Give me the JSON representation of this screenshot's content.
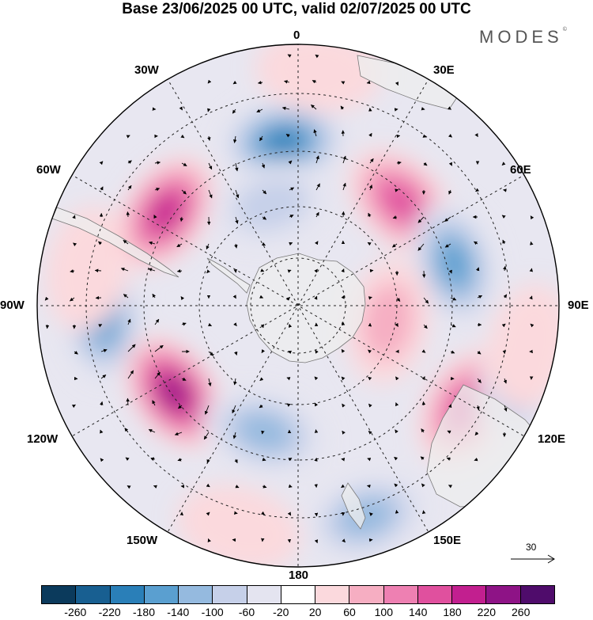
{
  "title": "Base 23/06/2025 00 UTC, valid 02/07/2025 00 UTC",
  "brand": "MODES",
  "brand_mark": "©",
  "meridian_labels": {
    "lon_0": "0",
    "lon_30e": "30E",
    "lon_60e": "60E",
    "lon_90e": "90E",
    "lon_120e": "120E",
    "lon_150e": "150E",
    "lon_180": "180",
    "lon_150w": "150W",
    "lon_120w": "120W",
    "lon_90w": "90W",
    "lon_60w": "60W",
    "lon_30w": "30W"
  },
  "reference_vector": {
    "label": "30"
  },
  "colorbar": {
    "colors": [
      "#0b3a5c",
      "#185f91",
      "#2a7fb8",
      "#5a9fd0",
      "#95badf",
      "#c6d0e9",
      "#e4e4f0",
      "#ffffff",
      "#fbd9dd",
      "#f6aec2",
      "#ee80b2",
      "#e0509e",
      "#c21f8f",
      "#8e1386",
      "#4f0c6b"
    ],
    "tick_labels": [
      "-260",
      "-220",
      "-180",
      "-140",
      "-100",
      "-60",
      "-20",
      "20",
      "60",
      "100",
      "140",
      "180",
      "220",
      "260"
    ]
  },
  "map": {
    "projection": "south polar stereographic",
    "anomaly_blobs": [
      {
        "lon": -5,
        "r_frac": 0.63,
        "value": -200
      },
      {
        "lon": -55,
        "r_frac": 0.62,
        "value": 190
      },
      {
        "lon": 45,
        "r_frac": 0.56,
        "value": 150
      },
      {
        "lon": 75,
        "r_frac": 0.62,
        "value": -170
      },
      {
        "lon": -94,
        "r_frac": 0.75,
        "value": -170
      },
      {
        "lon": -125,
        "r_frac": 0.58,
        "value": 240
      },
      {
        "lon": -165,
        "r_frac": 0.5,
        "value": -110
      },
      {
        "lon": 121,
        "r_frac": 0.75,
        "value": 150
      },
      {
        "lon": 162,
        "r_frac": 0.85,
        "value": -100
      },
      {
        "lon": 108,
        "r_frac": 0.9,
        "value": -110
      },
      {
        "lon": -80,
        "r_frac": 0.82,
        "value": 50
      },
      {
        "lon": 100,
        "r_frac": 0.35,
        "value": 90
      },
      {
        "lon": 100,
        "r_frac": 0.9,
        "value": 40
      },
      {
        "lon": -165,
        "r_frac": 0.88,
        "value": 50
      },
      {
        "lon": 5,
        "r_frac": 0.9,
        "value": 30
      },
      {
        "lon": -15,
        "r_frac": 0.4,
        "value": -80
      }
    ]
  }
}
